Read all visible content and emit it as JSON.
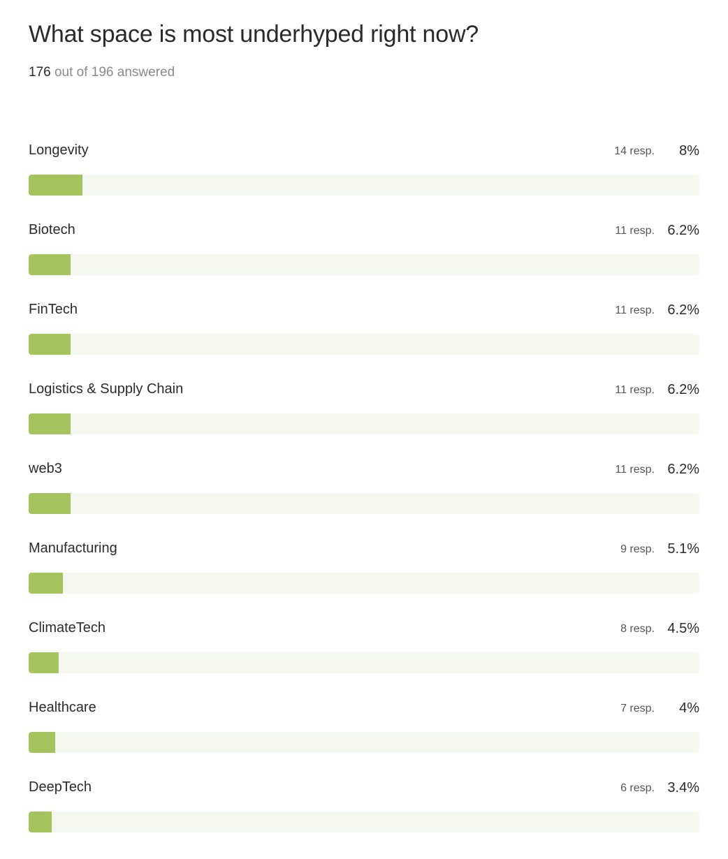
{
  "question": {
    "title": "What space is most underhyped right now?",
    "answered_count": "176",
    "answered_suffix": "out of 196 answered"
  },
  "colors": {
    "bar_fill": "#a4c45e",
    "bar_track": "#f4f8ee"
  },
  "options": [
    {
      "label": "Longevity",
      "responses": "14 resp.",
      "percent": "8%",
      "share": 0.08
    },
    {
      "label": "Biotech",
      "responses": "11 resp.",
      "percent": "6.2%",
      "share": 0.062
    },
    {
      "label": "FinTech",
      "responses": "11 resp.",
      "percent": "6.2%",
      "share": 0.062
    },
    {
      "label": "Logistics & Supply Chain",
      "responses": "11 resp.",
      "percent": "6.2%",
      "share": 0.062
    },
    {
      "label": "web3",
      "responses": "11 resp.",
      "percent": "6.2%",
      "share": 0.062
    },
    {
      "label": "Manufacturing",
      "responses": "9 resp.",
      "percent": "5.1%",
      "share": 0.051
    },
    {
      "label": "ClimateTech",
      "responses": "8 resp.",
      "percent": "4.5%",
      "share": 0.045
    },
    {
      "label": "Healthcare",
      "responses": "7 resp.",
      "percent": "4%",
      "share": 0.04
    },
    {
      "label": "DeepTech",
      "responses": "6 resp.",
      "percent": "3.4%",
      "share": 0.034
    }
  ]
}
